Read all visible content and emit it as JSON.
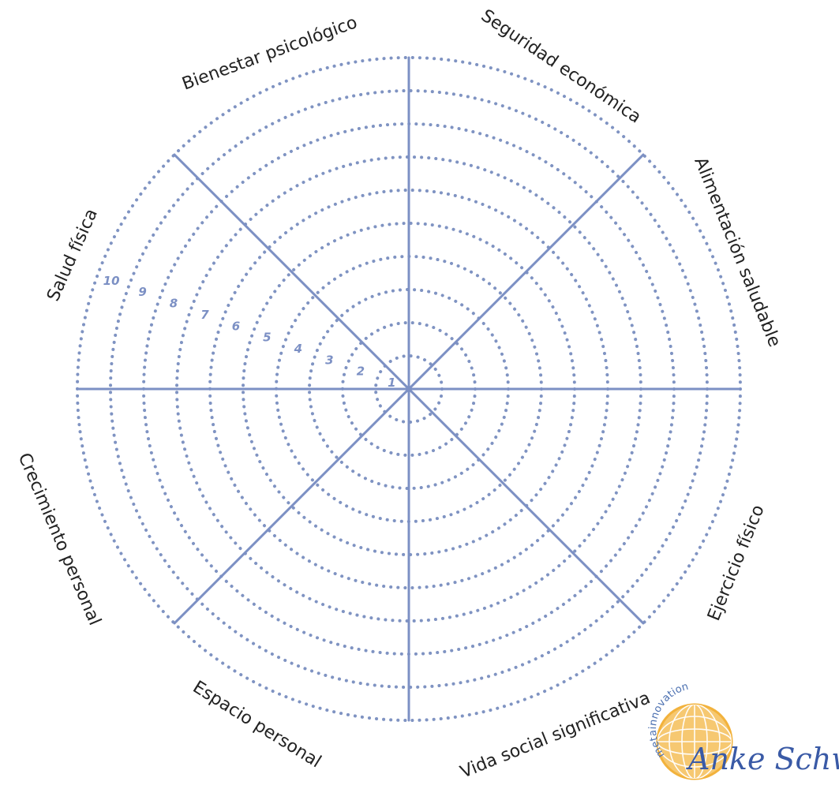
{
  "wheel": {
    "title": "",
    "scale": [
      "1",
      "2",
      "3",
      "4",
      "5",
      "6",
      "7",
      "8",
      "9",
      "10"
    ],
    "areas": [
      "Seguridad económica",
      "Alimentación saludable",
      "Ejercicio físico",
      "Vida social significativa",
      "Espacio personal",
      "Crecimiento personal",
      "Salud física",
      "Bienestar psicológico"
    ],
    "colors": {
      "lines": "#7c90c4",
      "labels": "#222222"
    }
  },
  "logo": {
    "brand": "metainnovation",
    "signature": "Anke Schwind",
    "colors": {
      "globe": "#f2b23c",
      "text": "#3a5aa6"
    }
  }
}
